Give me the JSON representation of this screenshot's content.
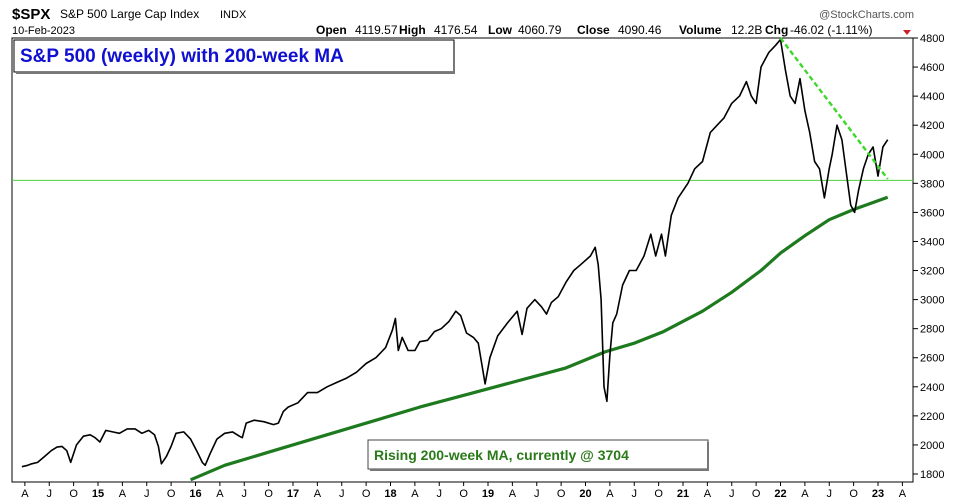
{
  "header": {
    "symbol": "$SPX",
    "name": "S&P 500 Large Cap Index",
    "exchange": "INDX",
    "date": "10-Feb-2023",
    "brand": "@StockCharts.com",
    "open_label": "Open",
    "open": "4119.57",
    "high_label": "High",
    "high": "4176.54",
    "low_label": "Low",
    "low": "4060.79",
    "close_label": "Close",
    "close": "4090.46",
    "volume_label": "Volume",
    "volume": "12.2B",
    "chg_label": "Chg",
    "chg": "-46.02 (-1.11%)"
  },
  "chart_data": {
    "type": "line",
    "title": "S&P 500 (weekly) with 200-week MA",
    "annotation": "Rising 200-week MA, currently @ 3704",
    "ylim": [
      1760,
      4840
    ],
    "xlim": [
      2014.2,
      2023.3
    ],
    "y_ticks": [
      1800,
      2000,
      2200,
      2400,
      2600,
      2800,
      3000,
      3200,
      3400,
      3600,
      3800,
      4000,
      4200,
      4400,
      4600,
      4800
    ],
    "x_ticks": [
      {
        "x": 2014.25,
        "label": "A"
      },
      {
        "x": 2014.5,
        "label": "J"
      },
      {
        "x": 2014.75,
        "label": "O"
      },
      {
        "x": 2015.0,
        "label": "15"
      },
      {
        "x": 2015.25,
        "label": "A"
      },
      {
        "x": 2015.5,
        "label": "J"
      },
      {
        "x": 2015.75,
        "label": "O"
      },
      {
        "x": 2016.0,
        "label": "16"
      },
      {
        "x": 2016.25,
        "label": "A"
      },
      {
        "x": 2016.5,
        "label": "J"
      },
      {
        "x": 2016.75,
        "label": "O"
      },
      {
        "x": 2017.0,
        "label": "17"
      },
      {
        "x": 2017.25,
        "label": "A"
      },
      {
        "x": 2017.5,
        "label": "J"
      },
      {
        "x": 2017.75,
        "label": "O"
      },
      {
        "x": 2018.0,
        "label": "18"
      },
      {
        "x": 2018.25,
        "label": "A"
      },
      {
        "x": 2018.5,
        "label": "J"
      },
      {
        "x": 2018.75,
        "label": "O"
      },
      {
        "x": 2019.0,
        "label": "19"
      },
      {
        "x": 2019.25,
        "label": "A"
      },
      {
        "x": 2019.5,
        "label": "J"
      },
      {
        "x": 2019.75,
        "label": "O"
      },
      {
        "x": 2020.0,
        "label": "20"
      },
      {
        "x": 2020.25,
        "label": "A"
      },
      {
        "x": 2020.5,
        "label": "J"
      },
      {
        "x": 2020.75,
        "label": "O"
      },
      {
        "x": 2021.0,
        "label": "21"
      },
      {
        "x": 2021.25,
        "label": "A"
      },
      {
        "x": 2021.5,
        "label": "J"
      },
      {
        "x": 2021.75,
        "label": "O"
      },
      {
        "x": 2022.0,
        "label": "22"
      },
      {
        "x": 2022.25,
        "label": "A"
      },
      {
        "x": 2022.5,
        "label": "J"
      },
      {
        "x": 2022.75,
        "label": "O"
      },
      {
        "x": 2023.0,
        "label": "23"
      },
      {
        "x": 2023.25,
        "label": "A"
      }
    ],
    "horizontal_line": {
      "y": 3820,
      "color": "#4ad23a"
    },
    "trendline": {
      "x": [
        2022.0,
        2023.1
      ],
      "y": [
        4800,
        3830
      ],
      "color": "#3cd82a"
    },
    "series": [
      {
        "color": "#000000",
        "x": [
          2014.22,
          2014.28,
          2014.32,
          2014.38,
          2014.45,
          2014.52,
          2014.58,
          2014.63,
          2014.68,
          2014.72,
          2014.78,
          2014.85,
          2014.92,
          2014.97,
          2015.02,
          2015.08,
          2015.15,
          2015.22,
          2015.3,
          2015.38,
          2015.45,
          2015.52,
          2015.58,
          2015.62,
          2015.65,
          2015.7,
          2015.75,
          2015.8,
          2015.88,
          2015.95,
          2016.02,
          2016.07,
          2016.1,
          2016.15,
          2016.22,
          2016.3,
          2016.38,
          2016.45,
          2016.48,
          2016.52,
          2016.6,
          2016.7,
          2016.8,
          2016.85,
          2016.9,
          2016.95,
          2017.05,
          2017.15,
          2017.25,
          2017.35,
          2017.45,
          2017.55,
          2017.65,
          2017.75,
          2017.85,
          2017.95,
          2018.02,
          2018.05,
          2018.08,
          2018.12,
          2018.18,
          2018.25,
          2018.3,
          2018.38,
          2018.45,
          2018.52,
          2018.6,
          2018.67,
          2018.72,
          2018.78,
          2018.85,
          2018.9,
          2018.94,
          2018.97,
          2019.02,
          2019.1,
          2019.2,
          2019.3,
          2019.35,
          2019.4,
          2019.48,
          2019.55,
          2019.6,
          2019.65,
          2019.72,
          2019.8,
          2019.88,
          2019.95,
          2020.05,
          2020.1,
          2020.13,
          2020.16,
          2020.19,
          2020.22,
          2020.25,
          2020.28,
          2020.32,
          2020.38,
          2020.45,
          2020.52,
          2020.6,
          2020.67,
          2020.72,
          2020.78,
          2020.82,
          2020.88,
          2020.95,
          2021.05,
          2021.12,
          2021.2,
          2021.28,
          2021.35,
          2021.42,
          2021.5,
          2021.58,
          2021.65,
          2021.7,
          2021.75,
          2021.8,
          2021.88,
          2021.95,
          2022.0,
          2022.05,
          2022.1,
          2022.15,
          2022.2,
          2022.25,
          2022.3,
          2022.35,
          2022.4,
          2022.45,
          2022.5,
          2022.53,
          2022.58,
          2022.63,
          2022.67,
          2022.72,
          2022.76,
          2022.8,
          2022.85,
          2022.9,
          2022.95,
          2023.0,
          2023.05,
          2023.1
        ],
        "y": [
          1850,
          1860,
          1870,
          1880,
          1920,
          1960,
          1985,
          1990,
          1960,
          1880,
          2000,
          2060,
          2070,
          2050,
          2020,
          2100,
          2090,
          2080,
          2110,
          2110,
          2080,
          2100,
          2070,
          1990,
          1870,
          1920,
          1990,
          2080,
          2090,
          2040,
          1950,
          1880,
          1860,
          1940,
          2040,
          2080,
          2090,
          2060,
          2050,
          2150,
          2170,
          2160,
          2140,
          2150,
          2230,
          2260,
          2290,
          2360,
          2360,
          2400,
          2430,
          2460,
          2500,
          2560,
          2600,
          2670,
          2790,
          2870,
          2650,
          2740,
          2650,
          2650,
          2710,
          2720,
          2780,
          2800,
          2850,
          2920,
          2890,
          2770,
          2740,
          2700,
          2540,
          2420,
          2600,
          2750,
          2840,
          2920,
          2760,
          2940,
          3000,
          2950,
          2900,
          2980,
          3020,
          3120,
          3200,
          3240,
          3300,
          3360,
          3240,
          3000,
          2400,
          2300,
          2620,
          2840,
          2900,
          3100,
          3200,
          3200,
          3300,
          3450,
          3300,
          3450,
          3300,
          3580,
          3700,
          3800,
          3900,
          3950,
          4150,
          4200,
          4250,
          4350,
          4400,
          4500,
          4400,
          4350,
          4600,
          4700,
          4750,
          4790,
          4580,
          4400,
          4350,
          4520,
          4300,
          4150,
          3950,
          3900,
          3700,
          3900,
          4000,
          4200,
          4100,
          3900,
          3650,
          3600,
          3750,
          3900,
          4000,
          4050,
          3850,
          4050,
          4100
        ]
      },
      {
        "color": "#1e7a1e",
        "x": [
          2015.95,
          2016.3,
          2016.8,
          2017.3,
          2017.8,
          2018.3,
          2018.8,
          2019.3,
          2019.8,
          2020.2,
          2020.5,
          2020.8,
          2021.2,
          2021.5,
          2021.8,
          2022.0,
          2022.25,
          2022.5,
          2022.75,
          2023.1
        ],
        "y": [
          1760,
          1860,
          1960,
          2060,
          2160,
          2260,
          2350,
          2440,
          2530,
          2640,
          2700,
          2780,
          2920,
          3050,
          3200,
          3320,
          3440,
          3550,
          3620,
          3704
        ]
      }
    ]
  }
}
